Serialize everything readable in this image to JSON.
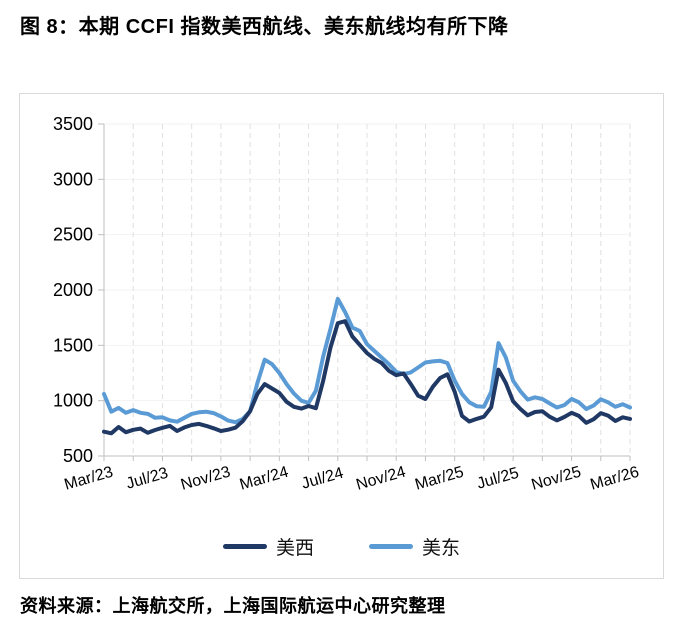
{
  "figure": {
    "title": "图 8：本期 CCFI 指数美西航线、美东航线均有所下降",
    "source": "资料来源：上海航交所，上海国际航运中心研究整理"
  },
  "colors": {
    "west_line": "#1F3864",
    "east_line": "#5B9BD5",
    "card_border": "#D9D9D9",
    "axis": "#BFBFBF",
    "grid_horizontal": "#F2F2F2",
    "grid_vertical_dashed": "#E0E0E0",
    "text": "#000000"
  },
  "chart_data": {
    "type": "line",
    "title": "图 8：本期 CCFI 指数美西航线、美东航线均有所下降",
    "xlabel": "",
    "ylabel": "",
    "legend_position": "bottom-center",
    "grid": {
      "horizontal": true,
      "vertical_dashed": true
    },
    "x_axis": {
      "tick_labels": [
        "Mar/23",
        "Jul/23",
        "Nov/23",
        "Mar/24",
        "Jul/24",
        "Nov/24",
        "Mar/25",
        "Jul/25",
        "Nov/25",
        "Mar/26"
      ],
      "label_every_months": 4,
      "minor_tick_every_months": 2,
      "months_total": 36,
      "label_rotation_deg": -16
    },
    "y_axis": {
      "min": 500,
      "max": 3500,
      "tick_step": 500,
      "tick_labels": [
        3500,
        3000,
        2500,
        2000,
        1500,
        1000,
        500
      ]
    },
    "sampling": "semi-monthly CCFI readings from Mar/23 to Mar/26 (73 points per series)",
    "series": [
      {
        "name": "美西",
        "color": "#1F3864",
        "values": [
          720,
          705,
          762,
          715,
          737,
          748,
          710,
          735,
          755,
          772,
          726,
          758,
          780,
          790,
          772,
          750,
          726,
          738,
          756,
          815,
          905,
          1060,
          1150,
          1110,
          1070,
          990,
          945,
          928,
          952,
          932,
          1180,
          1480,
          1700,
          1718,
          1580,
          1505,
          1430,
          1378,
          1340,
          1270,
          1230,
          1246,
          1150,
          1045,
          1015,
          1125,
          1205,
          1238,
          1080,
          862,
          812,
          835,
          855,
          940,
          1280,
          1160,
          995,
          925,
          868,
          898,
          905,
          855,
          822,
          852,
          890,
          862,
          800,
          832,
          888,
          865,
          816,
          850,
          835
        ]
      },
      {
        "name": "美东",
        "color": "#5B9BD5",
        "values": [
          1060,
          900,
          935,
          890,
          915,
          890,
          880,
          845,
          850,
          822,
          810,
          845,
          880,
          895,
          900,
          888,
          858,
          820,
          805,
          835,
          905,
          1160,
          1370,
          1330,
          1250,
          1150,
          1065,
          1000,
          980,
          1090,
          1400,
          1650,
          1920,
          1800,
          1660,
          1630,
          1510,
          1450,
          1390,
          1330,
          1260,
          1240,
          1255,
          1300,
          1345,
          1355,
          1360,
          1340,
          1180,
          1060,
          985,
          950,
          945,
          1080,
          1520,
          1390,
          1180,
          1085,
          1010,
          1030,
          1015,
          975,
          938,
          960,
          1015,
          985,
          925,
          955,
          1012,
          985,
          945,
          968,
          938
        ]
      }
    ]
  }
}
